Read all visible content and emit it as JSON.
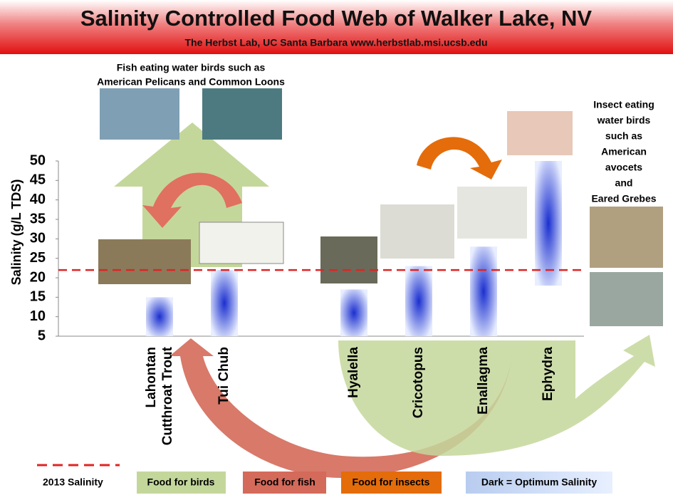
{
  "chart_data": {
    "type": "floating-bar",
    "title": "Salinity Controlled Food Web of Walker Lake, NV",
    "subtitle": "The Herbst Lab, UC Santa Barbara    www.herbstlab.msi.ucsb.edu",
    "y_label": "Salinity (g/L TDS)",
    "categories": [
      "Lahontan Cutthroat Trout",
      "Tui Chub",
      "Hyalella",
      "Cricotopus",
      "Enallagma",
      "Ephydra"
    ],
    "low": [
      5,
      5,
      5,
      5,
      5,
      18
    ],
    "high": [
      15,
      22,
      17,
      23,
      28,
      50
    ],
    "color": "#1a2fcf",
    "ylim": [
      5,
      50
    ],
    "yticks": [
      5,
      10,
      15,
      20,
      25,
      30,
      35,
      40,
      45,
      50
    ],
    "reference_line": {
      "value": 22,
      "label": "2013 Salinity",
      "color": "#e02424"
    },
    "annotations": {
      "fish_birds": [
        "Fish eating water birds such as",
        "American Pelicans and Common Loons"
      ],
      "insect_birds": [
        "Insect eating",
        "water birds",
        "such as",
        "American",
        "avocets",
        "and",
        "Eared Grebes"
      ]
    },
    "legend": [
      "Food for birds",
      "Food for fish",
      "Food  for insects",
      "Dark = Optimum Salinity"
    ]
  }
}
